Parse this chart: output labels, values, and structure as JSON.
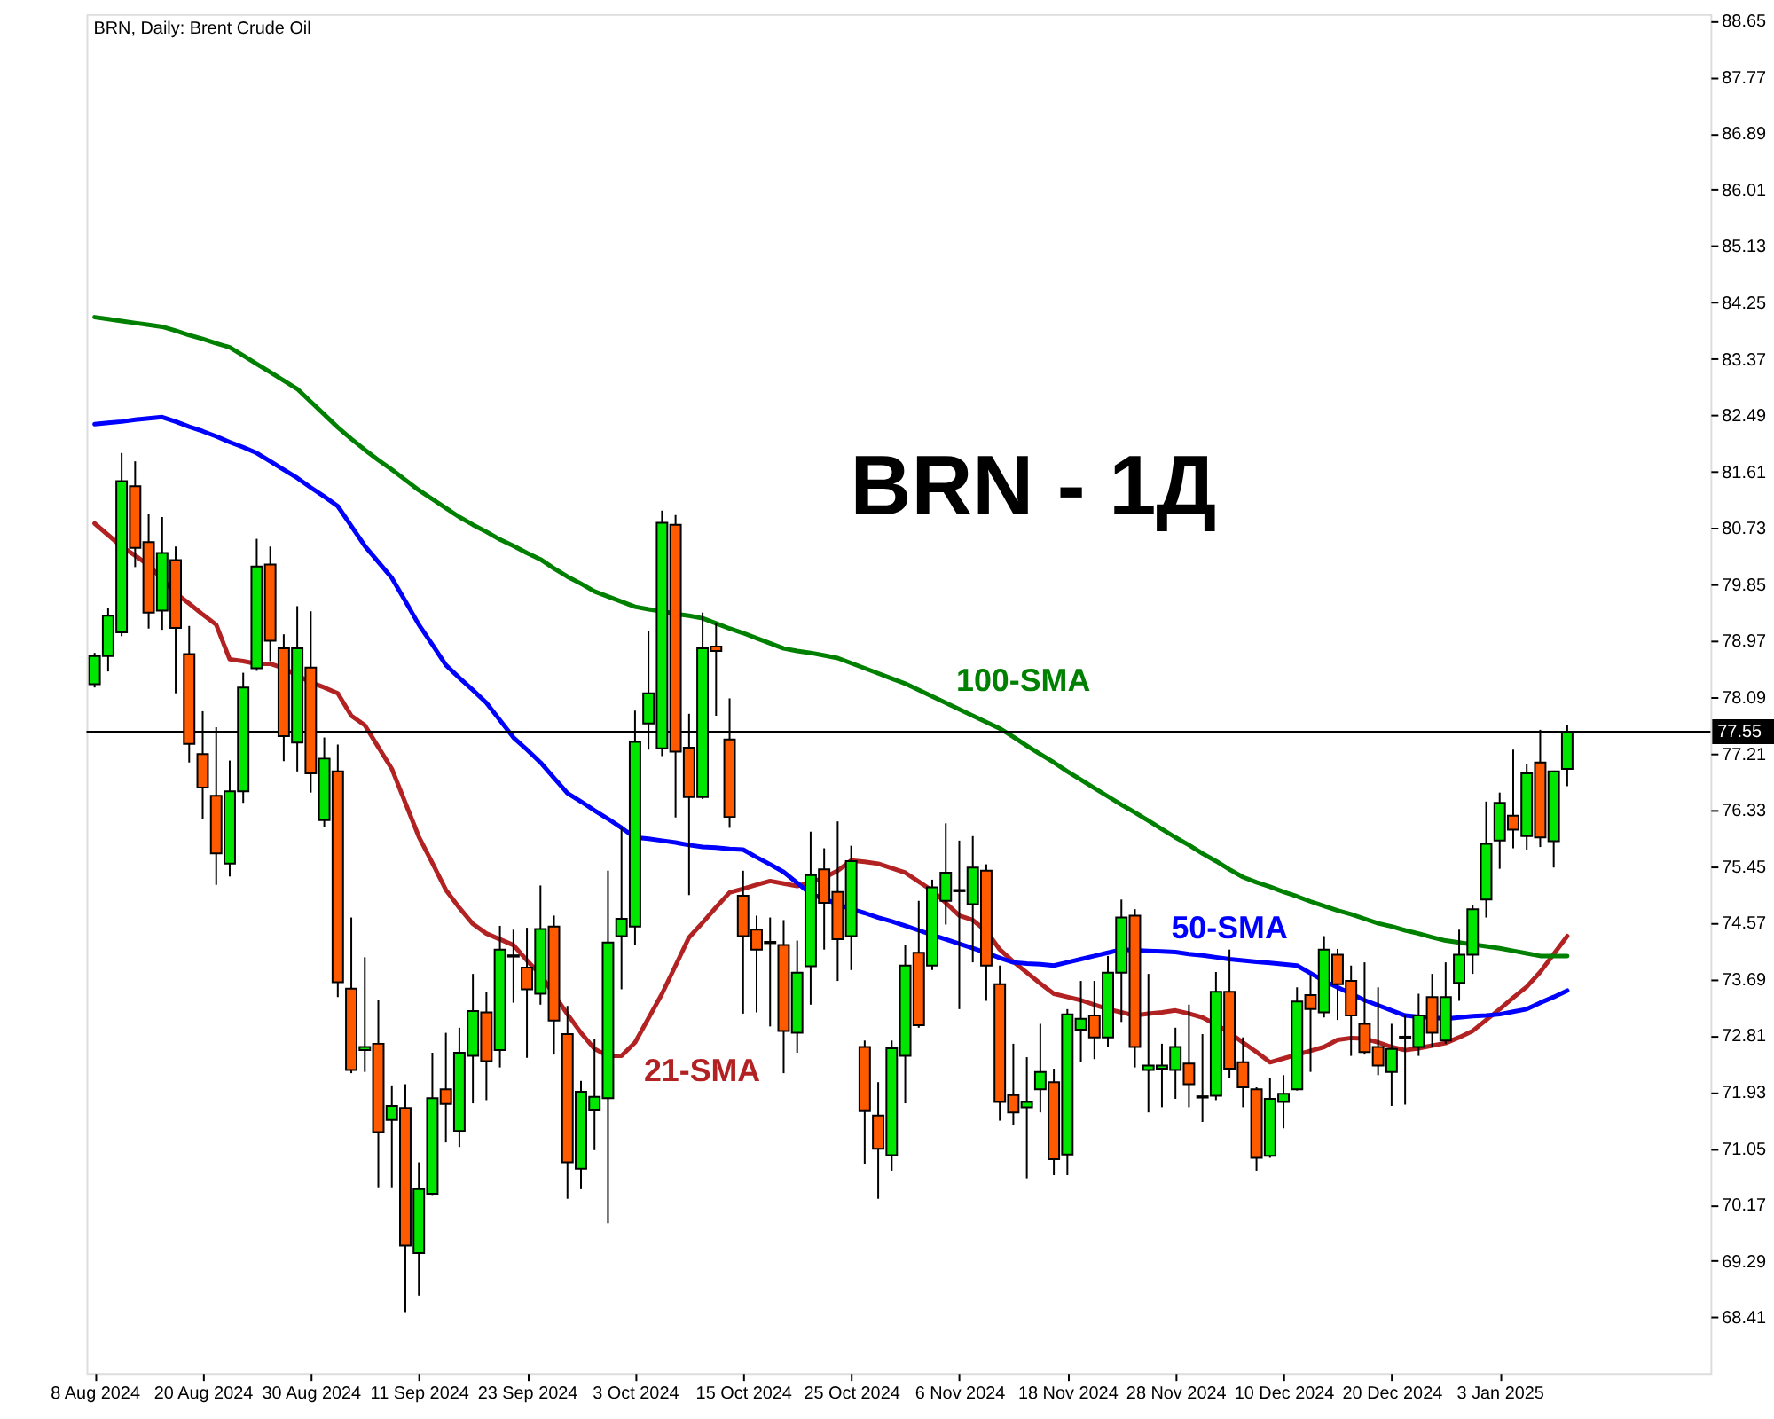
{
  "chart_data": {
    "type": "candlestick",
    "title": "BRN, Daily: Brent Crude Oil",
    "annotations": [
      "BRN - 1Д"
    ],
    "categories": [
      "8 Aug 2024",
      null,
      null,
      null,
      null,
      null,
      null,
      null,
      "20 Aug 2024",
      null,
      null,
      null,
      null,
      null,
      null,
      null,
      "30 Aug 2024",
      null,
      null,
      null,
      null,
      null,
      null,
      null,
      "11 Sep 2024",
      null,
      null,
      null,
      null,
      null,
      null,
      null,
      "23 Sep 2024",
      null,
      null,
      null,
      null,
      null,
      null,
      null,
      "3 Oct 2024",
      null,
      null,
      null,
      null,
      null,
      null,
      null,
      "15 Oct 2024",
      null,
      null,
      null,
      null,
      null,
      null,
      null,
      "25 Oct 2024",
      null,
      null,
      null,
      null,
      null,
      null,
      null,
      "6 Nov 2024",
      null,
      null,
      null,
      null,
      null,
      null,
      null,
      "18 Nov 2024",
      null,
      null,
      null,
      null,
      null,
      null,
      null,
      "28 Nov 2024",
      null,
      null,
      null,
      null,
      null,
      null,
      null,
      "10 Dec 2024",
      null,
      null,
      null,
      null,
      null,
      null,
      null,
      "20 Dec 2024",
      null,
      null,
      null,
      null,
      null,
      null,
      null,
      "3 Jan 2025",
      null,
      null,
      null,
      null,
      null
    ],
    "ohlc": [
      [
        78.29,
        78.78,
        78.24,
        78.73
      ],
      [
        78.73,
        79.48,
        78.49,
        79.36
      ],
      [
        79.1,
        81.9,
        79.04,
        81.46
      ],
      [
        81.38,
        81.77,
        80.12,
        80.42
      ],
      [
        80.51,
        80.95,
        79.16,
        79.41
      ],
      [
        79.44,
        80.9,
        79.14,
        80.34
      ],
      [
        80.23,
        80.44,
        78.15,
        79.17
      ],
      [
        78.76,
        79.2,
        77.07,
        77.36
      ],
      [
        77.2,
        77.87,
        76.19,
        76.68
      ],
      [
        76.55,
        77.62,
        75.16,
        75.65
      ],
      [
        75.49,
        77.1,
        75.29,
        76.62
      ],
      [
        76.62,
        78.47,
        76.44,
        78.24
      ],
      [
        78.54,
        80.56,
        78.5,
        80.13
      ],
      [
        80.16,
        80.44,
        78.65,
        78.97
      ],
      [
        78.85,
        79.07,
        77.09,
        77.48
      ],
      [
        77.38,
        79.51,
        76.93,
        78.85
      ],
      [
        78.55,
        79.43,
        76.6,
        76.9
      ],
      [
        76.17,
        77.46,
        76.06,
        77.13
      ],
      [
        76.93,
        77.35,
        73.41,
        73.64
      ],
      [
        73.54,
        74.65,
        72.22,
        72.27
      ],
      [
        72.58,
        74.03,
        72.24,
        72.63
      ],
      [
        72.68,
        73.36,
        70.44,
        71.3
      ],
      [
        71.49,
        72.03,
        70.44,
        71.71
      ],
      [
        71.68,
        72.05,
        68.49,
        69.53
      ],
      [
        69.41,
        70.83,
        68.75,
        70.41
      ],
      [
        70.34,
        72.54,
        70.32,
        71.83
      ],
      [
        71.97,
        72.85,
        71.14,
        71.74
      ],
      [
        71.32,
        72.93,
        71.07,
        72.54
      ],
      [
        72.49,
        73.77,
        71.75,
        73.19
      ],
      [
        73.17,
        73.49,
        71.8,
        72.41
      ],
      [
        72.58,
        74.52,
        72.31,
        74.15
      ],
      [
        74.04,
        74.46,
        73.32,
        74.06
      ],
      [
        73.87,
        74.49,
        72.46,
        73.53
      ],
      [
        73.46,
        75.15,
        73.29,
        74.47
      ],
      [
        74.51,
        74.68,
        72.51,
        73.04
      ],
      [
        72.83,
        73.27,
        70.26,
        70.83
      ],
      [
        70.73,
        72.1,
        70.41,
        71.93
      ],
      [
        71.64,
        72.76,
        71.02,
        71.85
      ],
      [
        71.83,
        75.38,
        69.88,
        74.26
      ],
      [
        74.36,
        76.05,
        73.53,
        74.63
      ],
      [
        74.51,
        77.88,
        74.22,
        77.39
      ],
      [
        77.68,
        79.12,
        77.27,
        78.15
      ],
      [
        77.29,
        81.0,
        77.17,
        80.81
      ],
      [
        80.78,
        80.93,
        76.21,
        77.24
      ],
      [
        77.3,
        77.83,
        75.0,
        76.53
      ],
      [
        76.53,
        79.41,
        76.5,
        78.85
      ],
      [
        78.88,
        79.24,
        77.8,
        78.81
      ],
      [
        77.43,
        78.07,
        76.05,
        76.22
      ],
      [
        74.99,
        75.38,
        73.15,
        74.36
      ],
      [
        74.46,
        74.68,
        73.17,
        74.15
      ],
      [
        74.27,
        74.65,
        72.95,
        74.25
      ],
      [
        74.22,
        74.61,
        72.22,
        72.88
      ],
      [
        72.85,
        74.29,
        72.54,
        73.79
      ],
      [
        73.89,
        75.99,
        73.29,
        75.31
      ],
      [
        75.4,
        75.73,
        74.15,
        74.88
      ],
      [
        75.05,
        76.15,
        73.66,
        74.31
      ],
      [
        74.36,
        75.77,
        73.83,
        75.53
      ],
      [
        72.63,
        72.73,
        70.8,
        71.63
      ],
      [
        71.56,
        72.08,
        70.26,
        71.04
      ],
      [
        70.94,
        72.73,
        70.7,
        72.61
      ],
      [
        72.49,
        74.22,
        71.75,
        73.9
      ],
      [
        74.1,
        74.91,
        72.93,
        72.97
      ],
      [
        73.9,
        75.24,
        73.83,
        75.12
      ],
      [
        74.91,
        76.12,
        74.54,
        75.35
      ],
      [
        75.06,
        75.85,
        73.22,
        75.08
      ],
      [
        74.86,
        75.92,
        73.95,
        75.43
      ],
      [
        75.38,
        75.48,
        73.35,
        73.9
      ],
      [
        73.61,
        73.9,
        71.48,
        71.77
      ],
      [
        71.88,
        72.68,
        71.41,
        71.61
      ],
      [
        71.69,
        72.47,
        70.58,
        71.77
      ],
      [
        71.97,
        72.99,
        71.61,
        72.24
      ],
      [
        72.08,
        72.29,
        70.63,
        70.88
      ],
      [
        70.95,
        73.22,
        70.63,
        73.14
      ],
      [
        72.9,
        73.66,
        72.39,
        73.07
      ],
      [
        73.12,
        73.66,
        72.44,
        72.78
      ],
      [
        72.78,
        74.05,
        72.63,
        73.79
      ],
      [
        73.79,
        74.93,
        73.02,
        74.65
      ],
      [
        74.68,
        74.78,
        72.31,
        72.63
      ],
      [
        72.27,
        73.77,
        71.61,
        72.34
      ],
      [
        72.29,
        72.68,
        71.69,
        72.34
      ],
      [
        72.27,
        72.93,
        71.82,
        72.63
      ],
      [
        72.37,
        73.29,
        71.69,
        72.05
      ],
      [
        71.86,
        72.83,
        71.46,
        71.84
      ],
      [
        71.87,
        73.8,
        71.8,
        73.49
      ],
      [
        73.49,
        74.15,
        72.15,
        72.29
      ],
      [
        72.39,
        72.78,
        71.69,
        72.0
      ],
      [
        71.97,
        72.0,
        70.7,
        70.9
      ],
      [
        70.93,
        72.15,
        70.9,
        71.82
      ],
      [
        71.77,
        72.19,
        71.36,
        71.9
      ],
      [
        71.97,
        73.56,
        71.95,
        73.34
      ],
      [
        73.44,
        73.75,
        72.24,
        73.22
      ],
      [
        73.17,
        74.36,
        73.09,
        74.15
      ],
      [
        74.07,
        74.16,
        73.05,
        73.61
      ],
      [
        73.66,
        73.9,
        72.49,
        73.12
      ],
      [
        72.99,
        73.95,
        72.51,
        72.55
      ],
      [
        72.63,
        73.56,
        72.19,
        72.34
      ],
      [
        72.24,
        72.99,
        71.71,
        72.6
      ],
      [
        72.77,
        73.12,
        71.73,
        72.79
      ],
      [
        72.63,
        73.46,
        72.49,
        73.12
      ],
      [
        73.41,
        73.77,
        72.63,
        72.85
      ],
      [
        72.73,
        73.95,
        72.68,
        73.41
      ],
      [
        73.63,
        74.46,
        73.35,
        74.07
      ],
      [
        74.07,
        74.85,
        73.77,
        74.78
      ],
      [
        74.93,
        76.46,
        74.65,
        75.8
      ],
      [
        75.85,
        76.6,
        75.41,
        76.44
      ],
      [
        76.24,
        77.27,
        75.73,
        76.02
      ],
      [
        75.92,
        77.05,
        75.71,
        76.9
      ],
      [
        77.07,
        77.58,
        75.75,
        75.9
      ],
      [
        75.84,
        76.93,
        75.43,
        76.93
      ],
      [
        76.97,
        77.66,
        76.7,
        77.55
      ]
    ],
    "colors": [
      "#00e600",
      "#00e600",
      "#00e600",
      "#ff5a00",
      "#ff5a00",
      "#00e600",
      "#ff5a00",
      "#ff5a00",
      "#ff5a00",
      "#ff5a00",
      "#00e600",
      "#00e600",
      "#00e600",
      "#ff5a00",
      "#ff5a00",
      "#00e600",
      "#ff5a00",
      "#00e600",
      "#ff5a00",
      "#ff5a00",
      "#00e600",
      "#ff5a00",
      "#00e600",
      "#ff5a00",
      "#00e600",
      "#00e600",
      "#ff5a00",
      "#00e600",
      "#00e600",
      "#ff5a00",
      "#00e600",
      "#00e600",
      "#ff5a00",
      "#00e600",
      "#ff5a00",
      "#ff5a00",
      "#00e600",
      "#00e600",
      "#00e600",
      "#00e600",
      "#00e600",
      "#00e600",
      "#00e600",
      "#ff5a00",
      "#ff5a00",
      "#00e600",
      "#ff5a00",
      "#ff5a00",
      "#ff5a00",
      "#ff5a00",
      "#ff5a00",
      "#ff5a00",
      "#00e600",
      "#00e600",
      "#ff5a00",
      "#ff5a00",
      "#00e600",
      "#ff5a00",
      "#ff5a00",
      "#00e600",
      "#00e600",
      "#ff5a00",
      "#00e600",
      "#00e600",
      "#00e600",
      "#00e600",
      "#ff5a00",
      "#ff5a00",
      "#ff5a00",
      "#00e600",
      "#00e600",
      "#ff5a00",
      "#00e600",
      "#00e600",
      "#ff5a00",
      "#00e600",
      "#00e600",
      "#ff5a00",
      "#00e600",
      "#00e600",
      "#00e600",
      "#ff5a00",
      "#ff5a00",
      "#00e600",
      "#ff5a00",
      "#ff5a00",
      "#ff5a00",
      "#00e600",
      "#00e600",
      "#00e600",
      "#ff5a00",
      "#00e600",
      "#ff5a00",
      "#ff5a00",
      "#ff5a00",
      "#ff5a00",
      "#00e600",
      "#00e600",
      "#00e600",
      "#ff5a00",
      "#00e600",
      "#00e600",
      "#00e600",
      "#00e600",
      "#00e600",
      "#ff5a00",
      "#00e600",
      "#ff5a00",
      "#00e600",
      "#00e600"
    ],
    "series": [
      {
        "name": "21-SMA",
        "type": "line",
        "color": "#b22222",
        "values": [
          80.8,
          80.62,
          80.44,
          80.3,
          80.15,
          79.93,
          79.71,
          79.55,
          79.38,
          79.22,
          78.68,
          78.65,
          78.61,
          78.61,
          78.54,
          78.43,
          78.32,
          78.24,
          78.15,
          77.8,
          77.65,
          77.31,
          76.97,
          76.44,
          75.91,
          75.5,
          75.08,
          74.8,
          74.55,
          74.4,
          74.31,
          74.22,
          73.98,
          73.76,
          73.45,
          73.14,
          72.85,
          72.6,
          72.49,
          72.49,
          72.7,
          73.08,
          73.46,
          73.9,
          74.34,
          74.57,
          74.81,
          75.04,
          75.1,
          75.16,
          75.22,
          75.18,
          75.14,
          75.2,
          75.27,
          75.38,
          75.54,
          75.52,
          75.49,
          75.42,
          75.35,
          75.21,
          75.07,
          74.88,
          74.68,
          74.61,
          74.44,
          74.15,
          73.96,
          73.79,
          73.62,
          73.46,
          73.41,
          73.36,
          73.29,
          73.22,
          73.17,
          73.12,
          73.15,
          73.17,
          73.2,
          73.15,
          73.09,
          72.98,
          72.85,
          72.7,
          72.55,
          72.39,
          72.45,
          72.51,
          72.57,
          72.63,
          72.74,
          72.77,
          72.76,
          72.7,
          72.63,
          72.58,
          72.61,
          72.65,
          72.69,
          72.78,
          72.88,
          73.05,
          73.22,
          73.4,
          73.57,
          73.8,
          74.08,
          74.36
        ]
      },
      {
        "name": "50-SMA",
        "type": "line",
        "color": "#0000ff",
        "values": [
          82.35,
          82.37,
          82.39,
          82.42,
          82.44,
          82.46,
          82.39,
          82.31,
          82.24,
          82.16,
          82.07,
          81.99,
          81.9,
          81.77,
          81.64,
          81.51,
          81.36,
          81.22,
          81.07,
          80.76,
          80.45,
          80.2,
          79.95,
          79.59,
          79.22,
          78.91,
          78.59,
          78.39,
          78.2,
          78.0,
          77.73,
          77.46,
          77.27,
          77.07,
          76.83,
          76.59,
          76.46,
          76.32,
          76.19,
          76.05,
          75.9,
          75.88,
          75.85,
          75.82,
          75.78,
          75.75,
          75.74,
          75.72,
          75.71,
          75.59,
          75.48,
          75.36,
          75.19,
          75.02,
          74.94,
          74.86,
          74.78,
          74.72,
          74.65,
          74.59,
          74.52,
          74.45,
          74.38,
          74.31,
          74.24,
          74.17,
          74.1,
          74.02,
          73.95,
          73.93,
          73.92,
          73.9,
          73.95,
          74.0,
          74.05,
          74.1,
          74.15,
          74.14,
          74.13,
          74.12,
          74.11,
          74.08,
          74.06,
          74.03,
          74.0,
          73.98,
          73.96,
          73.94,
          73.92,
          73.9,
          73.78,
          73.66,
          73.56,
          73.46,
          73.36,
          73.28,
          73.2,
          73.12,
          73.1,
          73.09,
          73.07,
          73.09,
          73.11,
          73.12,
          73.14,
          73.18,
          73.22,
          73.32,
          73.41,
          73.51
        ]
      },
      {
        "name": "100-SMA",
        "type": "line",
        "color": "#008000",
        "values": [
          84.02,
          83.99,
          83.96,
          83.93,
          83.9,
          83.87,
          83.81,
          83.74,
          83.68,
          83.61,
          83.55,
          83.42,
          83.29,
          83.16,
          83.03,
          82.9,
          82.7,
          82.5,
          82.3,
          82.12,
          81.95,
          81.79,
          81.64,
          81.48,
          81.32,
          81.18,
          81.04,
          80.9,
          80.78,
          80.67,
          80.55,
          80.45,
          80.34,
          80.24,
          80.1,
          79.97,
          79.86,
          79.74,
          79.66,
          79.58,
          79.5,
          79.46,
          79.43,
          79.39,
          79.36,
          79.32,
          79.24,
          79.16,
          79.09,
          79.01,
          78.93,
          78.85,
          78.81,
          78.78,
          78.74,
          78.7,
          78.62,
          78.54,
          78.46,
          78.38,
          78.3,
          78.2,
          78.1,
          78.0,
          77.9,
          77.8,
          77.7,
          77.6,
          77.47,
          77.33,
          77.2,
          77.07,
          76.93,
          76.8,
          76.67,
          76.54,
          76.41,
          76.29,
          76.16,
          76.03,
          75.9,
          75.78,
          75.65,
          75.53,
          75.4,
          75.28,
          75.2,
          75.13,
          75.05,
          74.98,
          74.9,
          74.83,
          74.76,
          74.7,
          74.63,
          74.56,
          74.51,
          74.45,
          74.4,
          74.34,
          74.29,
          74.26,
          74.23,
          74.2,
          74.17,
          74.13,
          74.09,
          74.05,
          74.05,
          74.05
        ]
      }
    ],
    "ylim": [
      67.54,
      88.75
    ],
    "yticks": [
      68.41,
      69.29,
      70.17,
      71.05,
      71.93,
      72.81,
      73.69,
      74.57,
      75.45,
      76.33,
      77.21,
      78.09,
      78.97,
      79.85,
      80.73,
      81.61,
      82.49,
      83.37,
      84.25,
      85.13,
      86.01,
      86.89,
      87.77,
      88.65
    ],
    "ref_lines": [
      {
        "axis": "y",
        "value": 77.55,
        "label": "77.55",
        "color": "#000000"
      }
    ]
  }
}
